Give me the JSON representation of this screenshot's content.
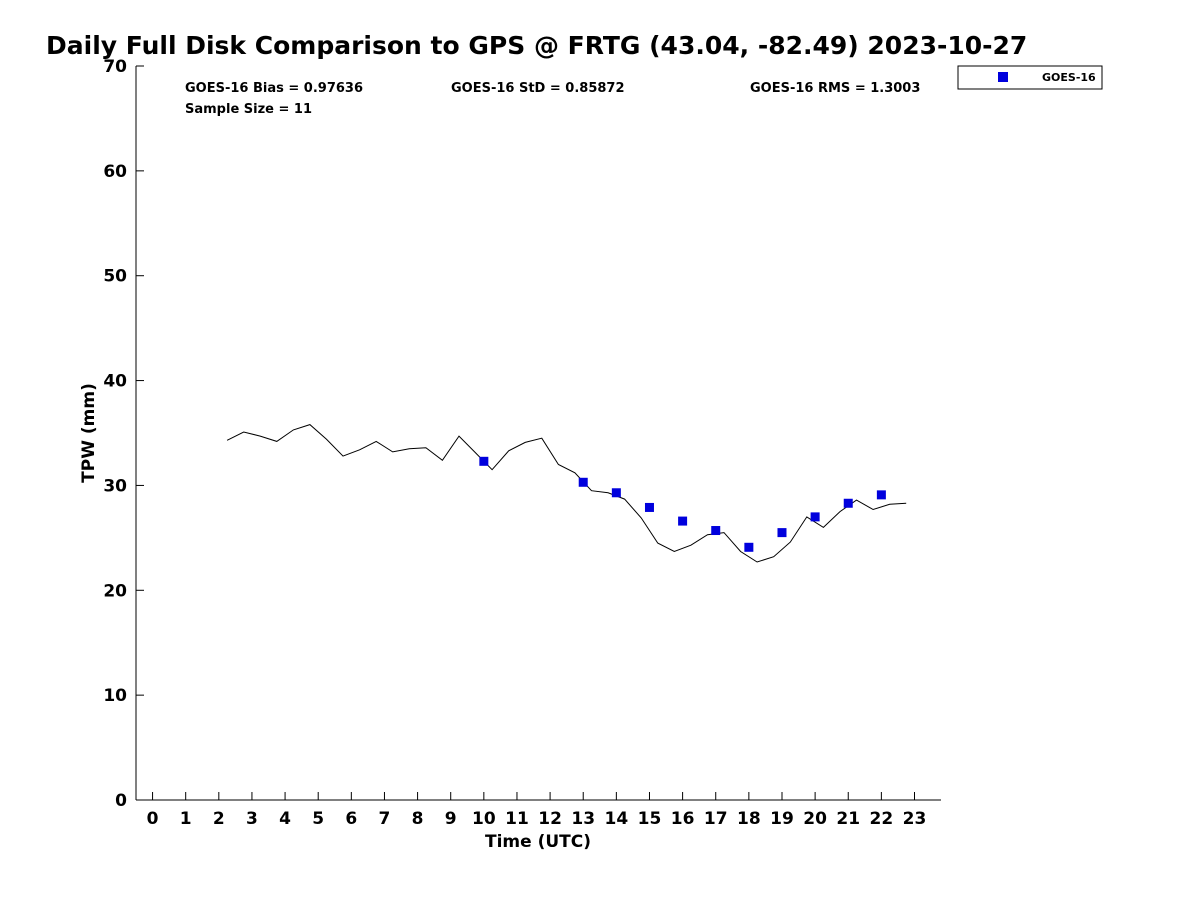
{
  "chart_data": {
    "type": "scatter",
    "title": "Daily Full Disk Comparison to GPS @ FRTG (43.04, -82.49) 2023-10-27",
    "xlabel": "Time (UTC)",
    "ylabel": "TPW (mm)",
    "xlim": [
      -0.5,
      23.8
    ],
    "ylim": [
      0,
      70
    ],
    "xticks": [
      0,
      1,
      2,
      3,
      4,
      5,
      6,
      7,
      8,
      9,
      10,
      11,
      12,
      13,
      14,
      15,
      16,
      17,
      18,
      19,
      20,
      21,
      22,
      23
    ],
    "yticks": [
      0,
      10,
      20,
      30,
      40,
      50,
      60,
      70
    ],
    "grid": false,
    "legend": {
      "position": "top-right",
      "entries": [
        "GOES-16"
      ]
    },
    "stats": {
      "bias": "GOES-16 Bias = 0.97636",
      "std": "GOES-16 StD = 0.85872",
      "rms": "GOES-16 RMS = 1.3003",
      "sample": "Sample Size = 11"
    },
    "series": [
      {
        "name": "GPS",
        "kind": "line",
        "color": "#000000",
        "x": [
          2.25,
          2.75,
          3.25,
          3.75,
          4.25,
          4.75,
          5.25,
          5.75,
          6.25,
          6.75,
          7.25,
          7.75,
          8.25,
          8.75,
          9.25,
          9.75,
          10.25,
          10.75,
          11.25,
          11.75,
          12.25,
          12.75,
          13.25,
          13.75,
          14.25,
          14.75,
          15.25,
          15.75,
          16.25,
          16.75,
          17.25,
          17.75,
          18.25,
          18.75,
          19.25,
          19.75,
          20.25,
          20.75,
          21.25,
          21.75,
          22.25,
          22.75
        ],
        "y": [
          34.3,
          35.1,
          34.7,
          34.2,
          35.3,
          35.8,
          34.4,
          32.8,
          33.4,
          34.2,
          33.2,
          33.5,
          33.6,
          32.4,
          34.7,
          33.1,
          31.5,
          33.3,
          34.1,
          34.5,
          32.0,
          31.2,
          29.5,
          29.3,
          28.7,
          26.9,
          24.5,
          23.7,
          24.3,
          25.3,
          25.5,
          23.7,
          22.7,
          23.2,
          24.6,
          27.0,
          26.0,
          27.5,
          28.6,
          27.7,
          28.2,
          28.3
        ]
      },
      {
        "name": "GOES-16",
        "kind": "marker",
        "marker": "square",
        "color": "#0000dd",
        "x": [
          10,
          13,
          14,
          15,
          16,
          17,
          18,
          19,
          20,
          21,
          22
        ],
        "y": [
          32.3,
          30.3,
          29.3,
          27.9,
          26.6,
          25.7,
          24.1,
          25.5,
          27.0,
          28.3,
          29.1
        ]
      }
    ]
  }
}
